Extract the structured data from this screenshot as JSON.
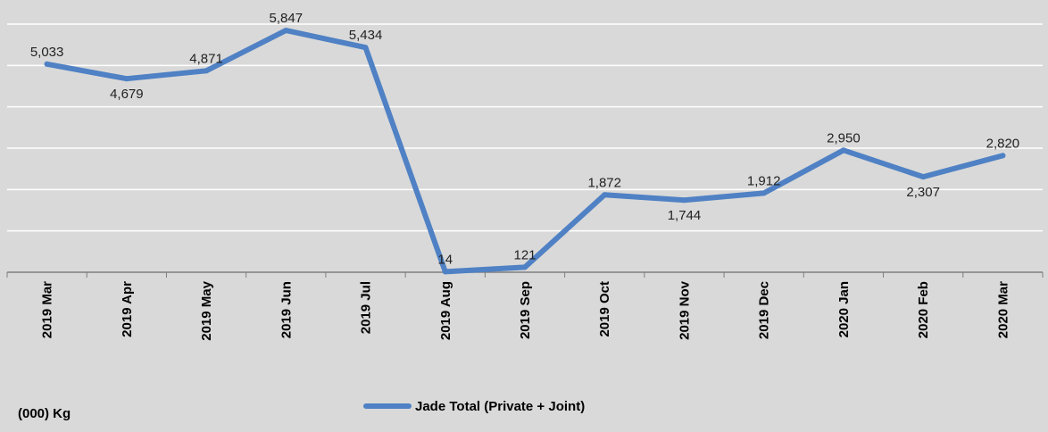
{
  "chart_data": {
    "type": "line",
    "categories": [
      "2019 Mar",
      "2019 Apr",
      "2019 May",
      "2019 Jun",
      "2019 Jul",
      "2019 Aug",
      "2019 Sep",
      "2019 Oct",
      "2019 Nov",
      "2019 Dec",
      "2020 Jan",
      "2020 Feb",
      "2020 Mar"
    ],
    "series": [
      {
        "name": "Jade Total (Private + Joint)",
        "values": [
          5033,
          4679,
          4871,
          5847,
          5434,
          14,
          121,
          1872,
          1744,
          1912,
          2950,
          2307,
          2820
        ],
        "labels": [
          "5,033",
          "4,679",
          "4,871",
          "5,847",
          "5,434",
          "14",
          "121",
          "1,872",
          "1,744",
          "1,912",
          "2,950",
          "2,307",
          "2,820"
        ],
        "color": "#4f81c4"
      }
    ],
    "unit_label": "(000) Kg",
    "ylim": [
      0,
      6000
    ],
    "grid": true,
    "legend": "bottom-center",
    "background": "#d9d9d9",
    "gridline_color": "#ffffff"
  }
}
